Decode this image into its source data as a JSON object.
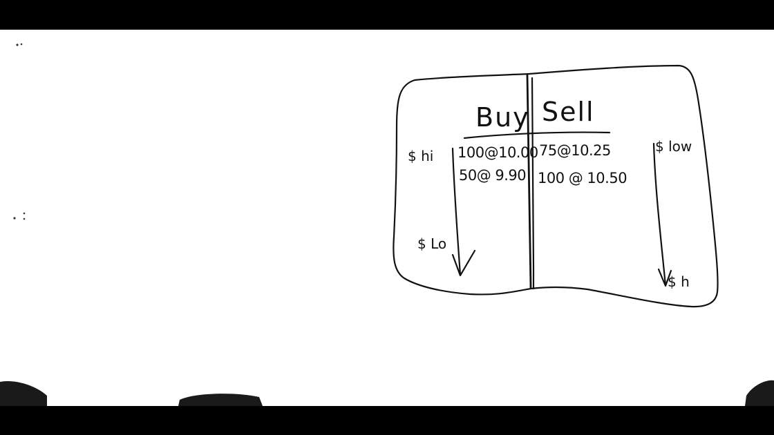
{
  "order_book": {
    "headers": {
      "buy": "Buy",
      "sell": "Sell"
    },
    "buy_orders": [
      "100@10.00",
      "50@ 9.90"
    ],
    "sell_orders": [
      "75@10.25",
      "100 @ 10.50"
    ],
    "buy_side_labels": {
      "top": "$ hi",
      "bottom": "$ Lo"
    },
    "sell_side_labels": {
      "top": "$ low",
      "bottom": "$ h"
    }
  }
}
